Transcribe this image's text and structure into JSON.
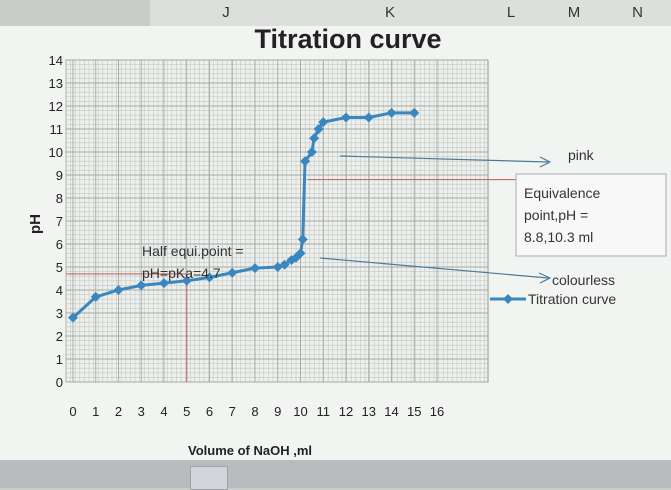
{
  "columns": [
    "J",
    "K",
    "L",
    "M",
    "N"
  ],
  "chart_data": {
    "type": "line",
    "title": "Titration curve",
    "xlabel": "Volume of NaOH ,ml",
    "ylabel": "pH",
    "xlim": [
      0,
      16
    ],
    "ylim": [
      0,
      14
    ],
    "x_ticks": [
      "0",
      "1",
      "2",
      "3",
      "4",
      "5",
      "6",
      "7",
      "8",
      "9",
      "10",
      "11",
      "12",
      "13",
      "14",
      "15",
      "16"
    ],
    "y_ticks": [
      "0",
      "1",
      "2",
      "3",
      "4",
      "5",
      "6",
      "7",
      "8",
      "9",
      "10",
      "11",
      "12",
      "13",
      "14"
    ],
    "grid": true,
    "legend_position": "right",
    "series": [
      {
        "name": "Titration curve",
        "color": "#3a86bf",
        "x": [
          0,
          1,
          2,
          3,
          4,
          5,
          6,
          7,
          8,
          9,
          9.3,
          9.6,
          9.8,
          10,
          10.1,
          10.2,
          10.5,
          10.6,
          10.8,
          11,
          12,
          13,
          14,
          15
        ],
        "y": [
          2.8,
          3.7,
          4.0,
          4.2,
          4.3,
          4.4,
          4.55,
          4.75,
          4.95,
          5.0,
          5.1,
          5.3,
          5.4,
          5.6,
          6.2,
          9.6,
          10.0,
          10.6,
          11.0,
          11.3,
          11.5,
          11.5,
          11.7,
          11.7
        ]
      }
    ],
    "annotations": {
      "half_equivalence": [
        "Half equi.point =",
        "pH=pKa=4.7"
      ],
      "pink": "pink",
      "equivalence": [
        "Equivalence",
        "point,pH =",
        "8.8,10.3 ml"
      ],
      "colourless": "colourless"
    },
    "reference_lines": {
      "half_equivalence": {
        "x": 5,
        "y": 4.7
      },
      "equivalence": {
        "x": 10.3,
        "y": 8.8
      }
    }
  }
}
